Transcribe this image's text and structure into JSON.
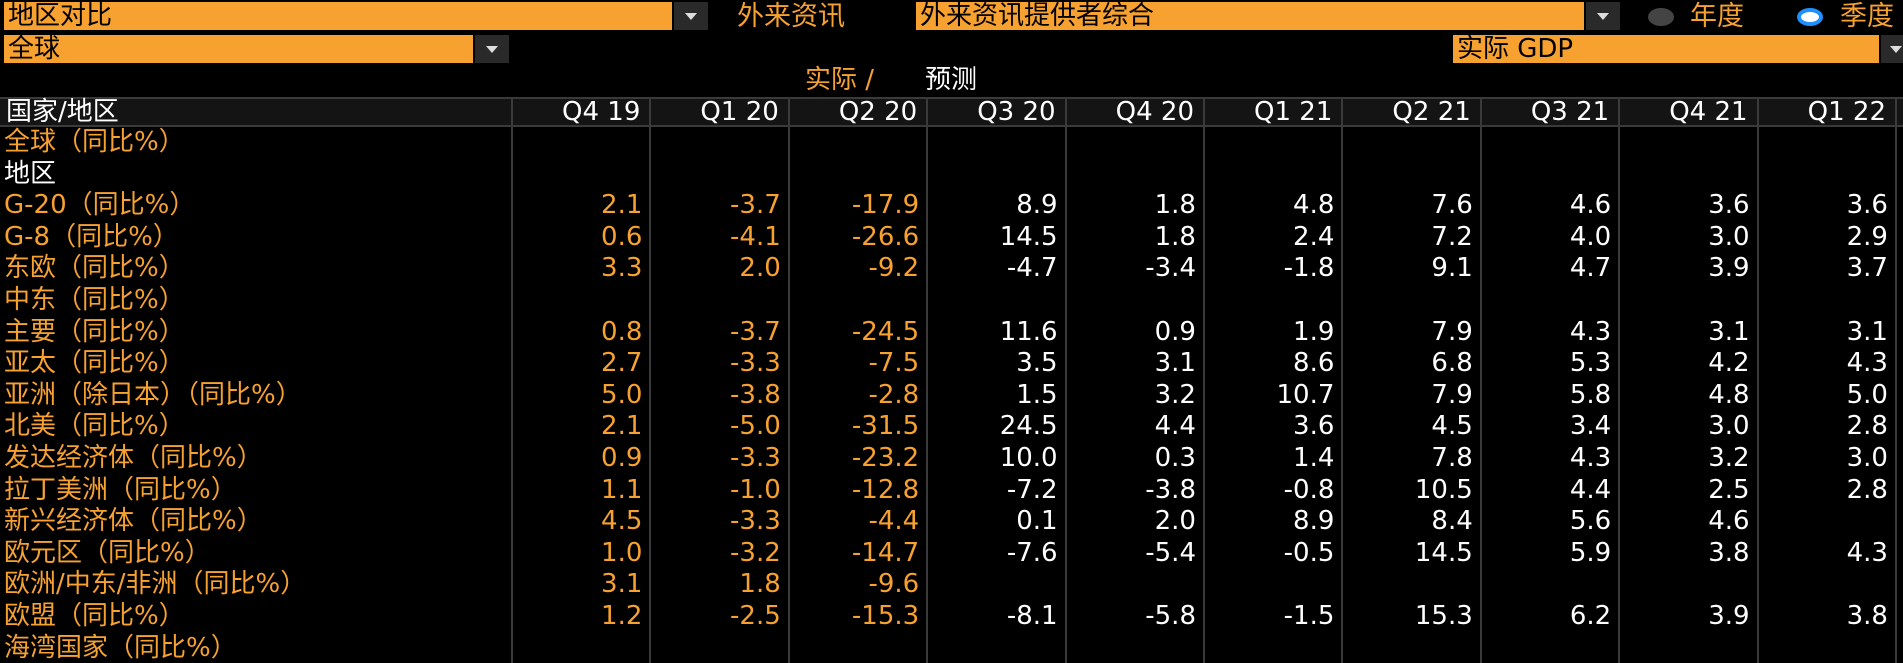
{
  "toolbar": {
    "comparison": "地区对比",
    "source_label": "外来资讯",
    "source": "外来资讯提供者综合",
    "annual": "年度",
    "quarterly": "季度",
    "region": "全球",
    "metric": "实际 GDP"
  },
  "legend": {
    "actual": "实际 /",
    "forecast": "预测"
  },
  "table": {
    "header": "国家/地区",
    "columns": [
      "Q4 19",
      "Q1 20",
      "Q2 20",
      "Q3 20",
      "Q4 20",
      "Q1 21",
      "Q2 21",
      "Q3 21",
      "Q4 21",
      "Q1 22"
    ],
    "rows": [
      {
        "label": "全球（同比%）"
      },
      {
        "label": "地区",
        "color": "#ffffff"
      },
      {
        "label": "G-20（同比%）",
        "values": [
          "2.1",
          "-3.7",
          "-17.9",
          "8.9",
          "1.8",
          "4.8",
          "7.6",
          "4.6",
          "3.6",
          "3.6"
        ]
      },
      {
        "label": "G-8（同比%）",
        "values": [
          "0.6",
          "-4.1",
          "-26.6",
          "14.5",
          "1.8",
          "2.4",
          "7.2",
          "4.0",
          "3.0",
          "2.9"
        ]
      },
      {
        "label": "东欧（同比%）",
        "values": [
          "3.3",
          "2.0",
          "-9.2",
          "-4.7",
          "-3.4",
          "-1.8",
          "9.1",
          "4.7",
          "3.9",
          "3.7"
        ]
      },
      {
        "label": "中东（同比%）"
      },
      {
        "label": "主要（同比%）",
        "values": [
          "0.8",
          "-3.7",
          "-24.5",
          "11.6",
          "0.9",
          "1.9",
          "7.9",
          "4.3",
          "3.1",
          "3.1"
        ]
      },
      {
        "label": "亚太（同比%）",
        "values": [
          "2.7",
          "-3.3",
          "-7.5",
          "3.5",
          "3.1",
          "8.6",
          "6.8",
          "5.3",
          "4.2",
          "4.3"
        ]
      },
      {
        "label": "亚洲（除日本）（同比%）",
        "values": [
          "5.0",
          "-3.8",
          "-2.8",
          "1.5",
          "3.2",
          "10.7",
          "7.9",
          "5.8",
          "4.8",
          "5.0"
        ]
      },
      {
        "label": "北美（同比%）",
        "values": [
          "2.1",
          "-5.0",
          "-31.5",
          "24.5",
          "4.4",
          "3.6",
          "4.5",
          "3.4",
          "3.0",
          "2.8"
        ]
      },
      {
        "label": "发达经济体（同比%）",
        "values": [
          "0.9",
          "-3.3",
          "-23.2",
          "10.0",
          "0.3",
          "1.4",
          "7.8",
          "4.3",
          "3.2",
          "3.0"
        ]
      },
      {
        "label": "拉丁美洲（同比%）",
        "values": [
          "1.1",
          "-1.0",
          "-12.8",
          "-7.2",
          "-3.8",
          "-0.8",
          "10.5",
          "4.4",
          "2.5",
          "2.8"
        ]
      },
      {
        "label": "新兴经济体（同比%）",
        "values": [
          "4.5",
          "-3.3",
          "-4.4",
          "0.1",
          "2.0",
          "8.9",
          "8.4",
          "5.6",
          "4.6",
          null
        ]
      },
      {
        "label": "欧元区（同比%）",
        "values": [
          "1.0",
          "-3.2",
          "-14.7",
          "-7.6",
          "-5.4",
          "-0.5",
          "14.5",
          "5.9",
          "3.8",
          "4.3"
        ]
      },
      {
        "label": "欧洲/中东/非洲（同比%）",
        "values": [
          "3.1",
          "1.8",
          "-9.6",
          null,
          null,
          null,
          null,
          null,
          null,
          null
        ]
      },
      {
        "label": "欧盟（同比%）",
        "values": [
          "1.2",
          "-2.5",
          "-15.3",
          "-8.1",
          "-5.8",
          "-1.5",
          "15.3",
          "6.2",
          "3.9",
          "3.8"
        ]
      },
      {
        "label": "海湾国家（同比%）"
      }
    ]
  }
}
